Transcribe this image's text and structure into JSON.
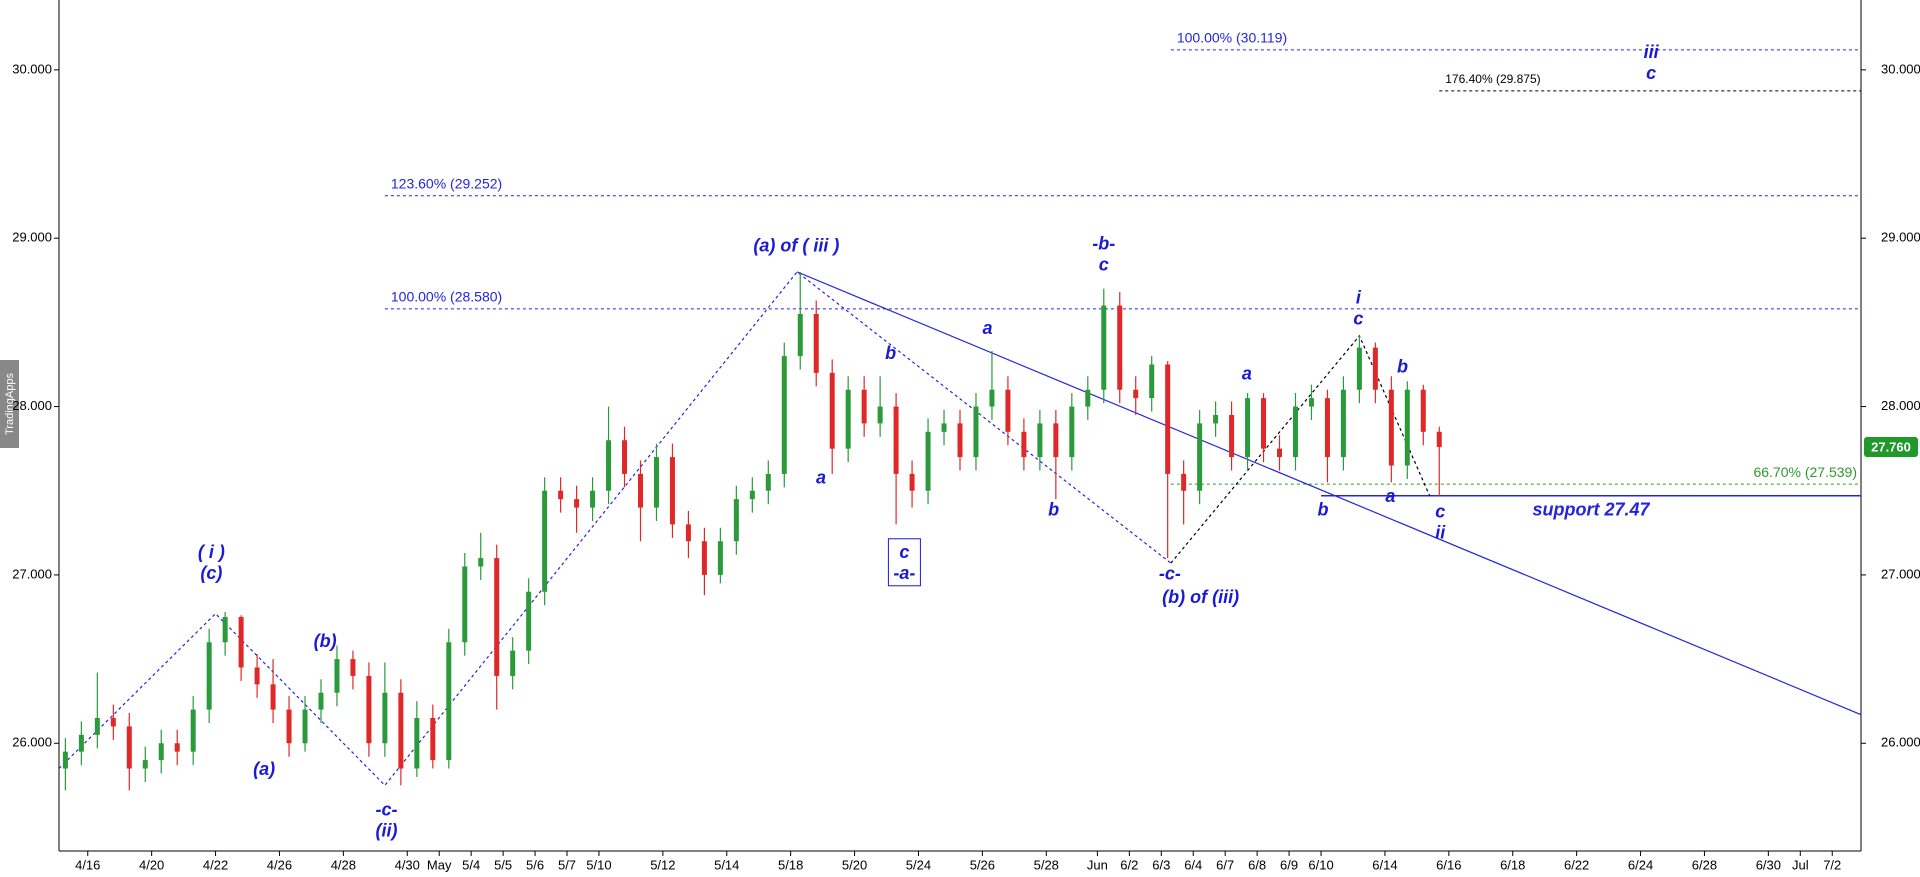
{
  "chart_data": {
    "type": "candlestick",
    "watermark": "TradingApps",
    "xlim": [
      -0.9,
      55.5
    ],
    "ylim": [
      25.36,
      30.415
    ],
    "xticks": [
      {
        "value": 0,
        "label": "4/16"
      },
      {
        "value": 2,
        "label": "4/20"
      },
      {
        "value": 4,
        "label": "4/22"
      },
      {
        "value": 6,
        "label": "4/26"
      },
      {
        "value": 8,
        "label": "4/28"
      },
      {
        "value": 10,
        "label": "4/30"
      },
      {
        "value": 11,
        "label": "May"
      },
      {
        "value": 12,
        "label": "5/4"
      },
      {
        "value": 13,
        "label": "5/5"
      },
      {
        "value": 14,
        "label": "5/6"
      },
      {
        "value": 15,
        "label": "5/7"
      },
      {
        "value": 16,
        "label": "5/10"
      },
      {
        "value": 18,
        "label": "5/12"
      },
      {
        "value": 20,
        "label": "5/14"
      },
      {
        "value": 22,
        "label": "5/18"
      },
      {
        "value": 24,
        "label": "5/20"
      },
      {
        "value": 26,
        "label": "5/24"
      },
      {
        "value": 28,
        "label": "5/26"
      },
      {
        "value": 30,
        "label": "5/28"
      },
      {
        "value": 31.6,
        "label": "Jun"
      },
      {
        "value": 32.6,
        "label": "6/2"
      },
      {
        "value": 33.6,
        "label": "6/3"
      },
      {
        "value": 34.6,
        "label": "6/4"
      },
      {
        "value": 35.6,
        "label": "6/7"
      },
      {
        "value": 36.6,
        "label": "6/8"
      },
      {
        "value": 37.6,
        "label": "6/9"
      },
      {
        "value": 38.6,
        "label": "6/10"
      },
      {
        "value": 40.6,
        "label": "6/14"
      },
      {
        "value": 42.6,
        "label": "6/16"
      },
      {
        "value": 44.6,
        "label": "6/18"
      },
      {
        "value": 46.6,
        "label": "6/22"
      },
      {
        "value": 48.6,
        "label": "6/24"
      },
      {
        "value": 50.6,
        "label": "6/28"
      },
      {
        "value": 52.6,
        "label": "6/30"
      },
      {
        "value": 53.6,
        "label": "Jul"
      },
      {
        "value": 54.6,
        "label": "7/2"
      }
    ],
    "yticks": [
      {
        "value": 26,
        "label": "26.000"
      },
      {
        "value": 27,
        "label": "27.000"
      },
      {
        "value": 28,
        "label": "28.000"
      },
      {
        "value": 29,
        "label": "29.000"
      },
      {
        "value": 30,
        "label": "30.000"
      }
    ],
    "up_color": "#2a9a3a",
    "down_color": "#e02828",
    "x": [
      -0.7,
      -0.2,
      0.3,
      0.8,
      1.3,
      1.8,
      2.3,
      2.8,
      3.3,
      3.8,
      4.3,
      4.8,
      5.3,
      5.8,
      6.3,
      6.8,
      7.3,
      7.8,
      8.3,
      8.8,
      9.3,
      9.8,
      10.3,
      10.8,
      11.3,
      11.8,
      12.3,
      12.8,
      13.3,
      13.8,
      14.3,
      14.8,
      15.3,
      15.8,
      16.3,
      16.8,
      17.3,
      17.8,
      18.3,
      18.8,
      19.3,
      19.8,
      20.3,
      20.8,
      21.3,
      21.8,
      22.3,
      22.8,
      23.3,
      23.8,
      24.3,
      24.8,
      25.3,
      25.8,
      26.3,
      26.8,
      27.3,
      27.8,
      28.3,
      28.8,
      29.3,
      29.8,
      30.3,
      30.8,
      31.3,
      31.8,
      32.3,
      32.8,
      33.3,
      33.8,
      34.3,
      34.8,
      35.3,
      35.8,
      36.3,
      36.8,
      37.3,
      37.8,
      38.3,
      38.8,
      39.3,
      39.8,
      40.3,
      40.8,
      41.3,
      41.8,
      42.3
    ],
    "open": [
      25.85,
      25.95,
      26.05,
      26.15,
      26.1,
      25.85,
      25.9,
      26.0,
      25.95,
      26.2,
      26.6,
      26.75,
      26.45,
      26.35,
      26.2,
      26.0,
      26.2,
      26.3,
      26.5,
      26.4,
      26.0,
      26.3,
      25.85,
      26.15,
      25.9,
      26.6,
      27.05,
      27.1,
      26.4,
      26.55,
      26.9,
      27.5,
      27.45,
      27.4,
      27.5,
      27.8,
      27.6,
      27.4,
      27.7,
      27.3,
      27.2,
      27.0,
      27.2,
      27.45,
      27.5,
      27.6,
      28.3,
      28.55,
      28.2,
      27.75,
      28.1,
      27.9,
      28.0,
      27.6,
      27.5,
      27.85,
      27.9,
      27.7,
      28.0,
      28.1,
      27.85,
      27.7,
      27.9,
      27.7,
      28.0,
      28.1,
      28.6,
      28.1,
      28.05,
      28.25,
      27.6,
      27.5,
      27.9,
      27.95,
      27.7,
      28.05,
      27.75,
      27.7,
      28.0,
      28.05,
      27.7,
      28.1,
      28.35,
      28.1,
      27.65,
      28.1,
      27.85
    ],
    "high": [
      26.03,
      26.13,
      26.42,
      26.23,
      26.18,
      25.98,
      26.08,
      26.08,
      26.28,
      26.68,
      26.78,
      26.76,
      26.53,
      26.5,
      26.28,
      26.28,
      26.38,
      26.58,
      26.55,
      26.48,
      26.48,
      26.38,
      26.25,
      26.23,
      26.68,
      27.13,
      27.25,
      27.18,
      26.63,
      26.98,
      27.58,
      27.58,
      27.53,
      27.58,
      28.0,
      27.88,
      27.68,
      27.78,
      27.78,
      27.38,
      27.28,
      27.28,
      27.53,
      27.58,
      27.68,
      28.38,
      28.8,
      28.63,
      28.28,
      28.18,
      28.18,
      28.18,
      28.08,
      27.68,
      27.93,
      27.98,
      27.98,
      28.08,
      28.33,
      28.18,
      27.93,
      27.98,
      27.98,
      28.08,
      28.18,
      28.7,
      28.68,
      28.18,
      28.3,
      28.27,
      27.68,
      27.98,
      28.03,
      28.03,
      28.08,
      28.08,
      27.83,
      28.08,
      28.13,
      28.1,
      28.18,
      28.42,
      28.38,
      28.18,
      28.15,
      28.13,
      27.88
    ],
    "low": [
      25.72,
      25.87,
      25.97,
      26.02,
      25.72,
      25.77,
      25.82,
      25.87,
      25.87,
      26.12,
      26.52,
      26.37,
      26.27,
      26.12,
      25.92,
      25.95,
      26.12,
      26.22,
      26.32,
      25.92,
      25.92,
      25.75,
      25.8,
      25.85,
      25.85,
      26.52,
      26.97,
      26.2,
      26.32,
      26.47,
      26.82,
      27.37,
      27.25,
      27.32,
      27.42,
      27.52,
      27.2,
      27.32,
      27.22,
      27.1,
      26.88,
      26.95,
      27.12,
      27.37,
      27.42,
      27.52,
      28.22,
      28.12,
      27.6,
      27.67,
      27.82,
      27.82,
      27.3,
      27.4,
      27.42,
      27.77,
      27.62,
      27.62,
      27.92,
      27.77,
      27.62,
      27.62,
      27.45,
      27.62,
      27.92,
      28.02,
      28.02,
      27.95,
      27.97,
      27.1,
      27.3,
      27.42,
      27.82,
      27.62,
      27.62,
      27.67,
      27.62,
      27.62,
      27.92,
      27.55,
      27.62,
      28.02,
      28.02,
      27.55,
      27.57,
      27.77,
      27.47
    ],
    "close": [
      25.95,
      26.05,
      26.15,
      26.1,
      25.85,
      25.9,
      26.0,
      25.95,
      26.2,
      26.6,
      26.75,
      26.45,
      26.35,
      26.2,
      26.0,
      26.2,
      26.3,
      26.5,
      26.4,
      26.0,
      26.3,
      25.85,
      26.15,
      25.9,
      26.6,
      27.05,
      27.1,
      26.4,
      26.55,
      26.9,
      27.5,
      27.45,
      27.4,
      27.5,
      27.8,
      27.6,
      27.4,
      27.7,
      27.3,
      27.2,
      27.0,
      27.2,
      27.45,
      27.5,
      27.6,
      28.3,
      28.55,
      28.2,
      27.75,
      28.1,
      27.9,
      28.0,
      27.6,
      27.5,
      27.85,
      27.9,
      27.7,
      28.0,
      28.1,
      27.85,
      27.7,
      27.9,
      27.7,
      28.0,
      28.1,
      28.6,
      28.1,
      28.05,
      28.25,
      27.6,
      27.5,
      27.9,
      27.95,
      27.7,
      28.05,
      27.75,
      27.7,
      28.0,
      28.05,
      27.7,
      28.1,
      28.35,
      28.1,
      27.65,
      28.1,
      27.85,
      27.76
    ],
    "last_price": {
      "value": 27.76,
      "label": "27.760",
      "color": "#1f9a2a"
    },
    "levels": [
      {
        "label": "100.00% (30.119)",
        "value": 30.119,
        "start": 33.9,
        "color": "#2424e0",
        "style": "dotted",
        "label_at": "start",
        "font_size": 14
      },
      {
        "label": "176.40% (29.875)",
        "value": 29.875,
        "start": 42.3,
        "color": "#000000",
        "style": "dotted",
        "label_at": "start",
        "font_size": 12
      },
      {
        "label": "123.60% (29.252)",
        "value": 29.252,
        "start": 9.3,
        "color": "#2424e0",
        "style": "dotted",
        "label_at": "start",
        "font_size": 14
      },
      {
        "label": "100.00% (28.580)",
        "value": 28.58,
        "start": 9.3,
        "color": "#2424e0",
        "style": "dotted",
        "label_at": "start",
        "font_size": 14
      },
      {
        "label": "66.70% (27.539)",
        "value": 27.539,
        "start": 33.9,
        "color": "#2e9a2e",
        "style": "dotted",
        "label_at": "end",
        "font_size": 14
      },
      {
        "label": "support 27.47",
        "value": 27.47,
        "start": 38.6,
        "color": "#2424e0",
        "style": "solid",
        "label_at": "middle",
        "font_size": 18
      }
    ],
    "lines": [
      {
        "color": "#2424e0",
        "style": "dotted",
        "x": [
          -0.9,
          4.0,
          9.3,
          22.2,
          33.9
        ],
        "y": [
          25.85,
          26.77,
          25.75,
          28.8,
          27.07
        ]
      },
      {
        "color": "#000000",
        "style": "dotted",
        "x": [
          33.9,
          39.8,
          42.0
        ],
        "y": [
          27.07,
          28.42,
          27.47
        ]
      },
      {
        "color": "#2424e0",
        "style": "solid",
        "x": [
          22.2,
          55.5
        ],
        "y": [
          28.8,
          26.17
        ]
      }
    ],
    "annotations": [
      {
        "lines": [
          "( i )",
          "(c)"
        ],
        "x": 3.87,
        "y": 27.13
      },
      {
        "lines": [
          "(a)"
        ],
        "x": 5.52,
        "y": 25.84
      },
      {
        "lines": [
          "(b)"
        ],
        "x": 7.43,
        "y": 26.6
      },
      {
        "lines": [
          "-c-",
          "(ii)"
        ],
        "x": 9.35,
        "y": 25.6
      },
      {
        "lines": [
          "(a) of ( iii )"
        ],
        "x": 22.18,
        "y": 28.95
      },
      {
        "lines": [
          "b"
        ],
        "x": 25.13,
        "y": 28.31
      },
      {
        "lines": [
          "a"
        ],
        "x": 22.95,
        "y": 27.57
      },
      {
        "lines": [
          "c",
          "-a-"
        ],
        "x": 25.56,
        "y": 27.13,
        "boxed": true
      },
      {
        "lines": [
          "a"
        ],
        "x": 28.16,
        "y": 28.46
      },
      {
        "lines": [
          "b"
        ],
        "x": 30.23,
        "y": 27.38
      },
      {
        "lines": [
          "-b-",
          "c"
        ],
        "x": 31.8,
        "y": 28.96
      },
      {
        "lines": [
          "a"
        ],
        "x": 36.28,
        "y": 28.19
      },
      {
        "lines": [
          "-c-"
        ],
        "x": 33.87,
        "y": 27.0
      },
      {
        "lines": [
          "(b) of (iii)"
        ],
        "x": 34.83,
        "y": 26.86
      },
      {
        "lines": [
          "i",
          "c"
        ],
        "x": 39.77,
        "y": 28.64
      },
      {
        "lines": [
          "b"
        ],
        "x": 41.15,
        "y": 28.23
      },
      {
        "lines": [
          "a"
        ],
        "x": 40.77,
        "y": 27.46
      },
      {
        "lines": [
          "b"
        ],
        "x": 38.66,
        "y": 27.38
      },
      {
        "lines": [
          "c",
          "ii"
        ],
        "x": 42.33,
        "y": 27.37
      },
      {
        "lines": [
          "iii",
          "c"
        ],
        "x": 48.93,
        "y": 30.1
      }
    ]
  }
}
